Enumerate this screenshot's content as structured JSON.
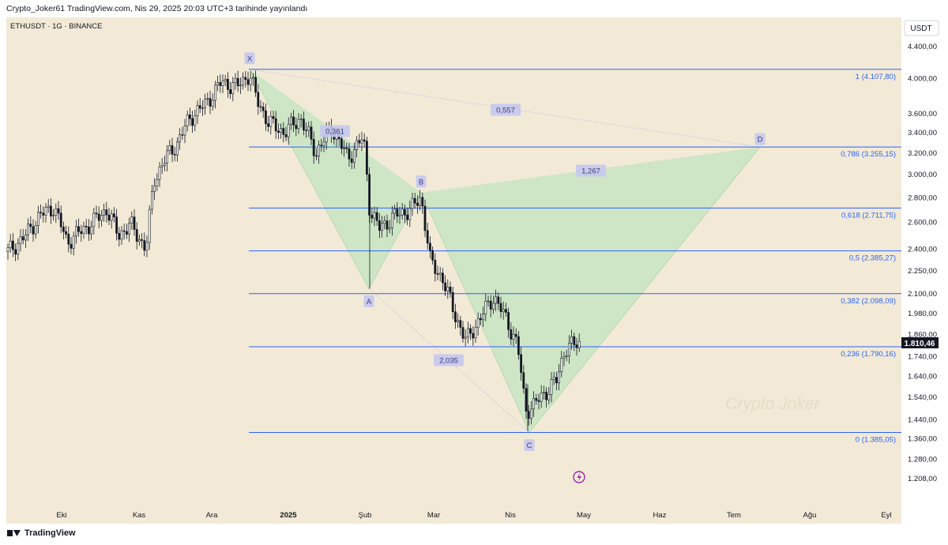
{
  "header": {
    "caption": "Crypto_Joker61 TradingView.com, Nis 29, 2025 20:03 UTC+3 tarihinde yayınlandı"
  },
  "symbol": {
    "label": "ETHUSDT · 1G · BINANCE"
  },
  "price_scale": {
    "currency": "USDT",
    "ticks": [
      "4.400,00",
      "4.000,00",
      "3.600,00",
      "3.400,00",
      "3.200,00",
      "3.000,00",
      "2.800,00",
      "2.600,00",
      "2.400,00",
      "2.250,00",
      "2.100,00",
      "1.980,00",
      "1.860,00",
      "1.740,00",
      "1.640,00",
      "1.540,00",
      "1.440,00",
      "1.360,00",
      "1.280,00",
      "1.208,00"
    ],
    "current_price": "1.810,46"
  },
  "time_axis": {
    "labels": [
      "Eki",
      "Kas",
      "Ara",
      "2025",
      "Şub",
      "Mar",
      "Nis",
      "May",
      "Haz",
      "Tem",
      "Ağu",
      "Eyl"
    ]
  },
  "fib_levels": [
    {
      "label": "1 (4.107,80)",
      "price": 4107.8
    },
    {
      "label": "0,786 (3.255,15)",
      "price": 3255.15
    },
    {
      "label": "0,618 (2.711,75)",
      "price": 2711.75
    },
    {
      "label": "0,5 (2.385,27)",
      "price": 2385.27
    },
    {
      "label": "0,382 (2.098,09)",
      "price": 2098.09
    },
    {
      "label": "0,236 (1.790,16)",
      "price": 1790.16
    },
    {
      "label": "0 (1.385,05)",
      "price": 1385.05
    }
  ],
  "pattern": {
    "points": [
      {
        "label": "X",
        "price": 4107.8
      },
      {
        "label": "A",
        "price": 2130
      },
      {
        "label": "B",
        "price": 2840
      },
      {
        "label": "C",
        "price": 1385
      },
      {
        "label": "D",
        "price": 3255
      }
    ],
    "ratios": [
      "0,557",
      "1,267",
      "0,361",
      "2,035"
    ]
  },
  "watermark": "Crypto Joker",
  "footer": {
    "brand": "TradingView"
  },
  "colors": {
    "background": "#f2ead6",
    "fib_line": "#2962ff",
    "pattern_fill": "#c9e5c3",
    "label_box": "#c5c8ee",
    "candle": "#131722"
  }
}
